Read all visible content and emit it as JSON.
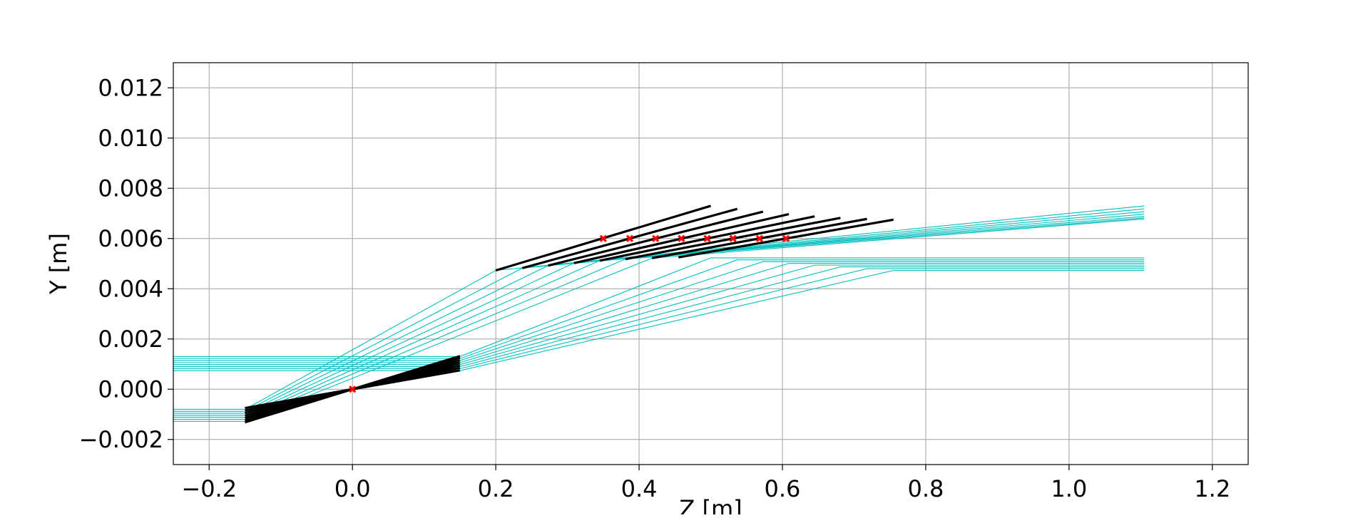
{
  "chart_data": {
    "type": "line",
    "title": "",
    "xlabel": "Z [m]",
    "ylabel": "Y [m]",
    "xlim": [
      -0.25,
      1.25
    ],
    "ylim": [
      -0.003,
      0.013
    ],
    "grid": true,
    "x_ticks": [
      -0.2,
      0.0,
      0.2,
      0.4,
      0.6,
      0.8,
      1.0,
      1.2
    ],
    "x_tick_labels": [
      "−0.2",
      "0.0",
      "0.2",
      "0.4",
      "0.6",
      "0.8",
      "1.0",
      "1.2"
    ],
    "y_ticks": [
      -0.002,
      0.0,
      0.002,
      0.004,
      0.006,
      0.008,
      0.01,
      0.012
    ],
    "y_tick_labels": [
      "−0.002",
      "0.000",
      "0.002",
      "0.004",
      "0.006",
      "0.008",
      "0.010",
      "0.012"
    ],
    "colors": {
      "ray": "#00bfbf",
      "optic": "#000000",
      "point": "#ff0000",
      "grid": "#b0b0b0"
    },
    "source_mirror": {
      "pivot": [
        0.0,
        0.0
      ],
      "segments": [
        [
          [
            -0.15,
            -0.00075
          ],
          [
            0.15,
            0.00075
          ]
        ],
        [
          [
            -0.15,
            -0.00085
          ],
          [
            0.15,
            0.00085
          ]
        ],
        [
          [
            -0.15,
            -0.00095
          ],
          [
            0.15,
            0.00095
          ]
        ],
        [
          [
            -0.15,
            -0.00105
          ],
          [
            0.15,
            0.00105
          ]
        ],
        [
          [
            -0.15,
            -0.00115
          ],
          [
            0.15,
            0.00115
          ]
        ],
        [
          [
            -0.15,
            -0.00125
          ],
          [
            0.15,
            0.00125
          ]
        ],
        [
          [
            -0.15,
            -0.00132
          ],
          [
            0.15,
            0.00132
          ]
        ]
      ]
    },
    "segmented_mirrors": [
      {
        "start": [
          0.2,
          0.00473
        ],
        "end": [
          0.5,
          0.0073
        ],
        "center": [
          0.35,
          0.006
        ]
      },
      {
        "start": [
          0.237,
          0.00482
        ],
        "end": [
          0.537,
          0.00718
        ],
        "center": [
          0.387,
          0.006
        ]
      },
      {
        "start": [
          0.273,
          0.00492
        ],
        "end": [
          0.573,
          0.00707
        ],
        "center": [
          0.423,
          0.006
        ]
      },
      {
        "start": [
          0.309,
          0.00502
        ],
        "end": [
          0.609,
          0.00697
        ],
        "center": [
          0.459,
          0.006
        ]
      },
      {
        "start": [
          0.345,
          0.00512
        ],
        "end": [
          0.645,
          0.00688
        ],
        "center": [
          0.495,
          0.006
        ]
      },
      {
        "start": [
          0.381,
          0.00518
        ],
        "end": [
          0.681,
          0.00682
        ],
        "center": [
          0.531,
          0.006
        ]
      },
      {
        "start": [
          0.418,
          0.00522
        ],
        "end": [
          0.718,
          0.00678
        ],
        "center": [
          0.568,
          0.006
        ]
      },
      {
        "start": [
          0.455,
          0.00525
        ],
        "end": [
          0.755,
          0.00675
        ],
        "center": [
          0.605,
          0.006
        ]
      }
    ],
    "series": [
      {
        "x": [
          -0.25,
          -0.15,
          0.2,
          1.105
        ],
        "y": [
          -0.0008,
          -0.0008,
          0.00473,
          0.0073
        ]
      },
      {
        "x": [
          -0.25,
          -0.15,
          0.237,
          1.105
        ],
        "y": [
          -0.00088,
          -0.00088,
          0.00482,
          0.00718
        ]
      },
      {
        "x": [
          -0.25,
          -0.15,
          0.273,
          1.105
        ],
        "y": [
          -0.00096,
          -0.00096,
          0.00492,
          0.00707
        ]
      },
      {
        "x": [
          -0.25,
          -0.15,
          0.309,
          1.105
        ],
        "y": [
          -0.00104,
          -0.00104,
          0.00502,
          0.00697
        ]
      },
      {
        "x": [
          -0.25,
          -0.15,
          0.345,
          1.105
        ],
        "y": [
          -0.00112,
          -0.00112,
          0.00512,
          0.00688
        ]
      },
      {
        "x": [
          -0.25,
          -0.15,
          0.381,
          1.105
        ],
        "y": [
          -0.0012,
          -0.0012,
          0.00518,
          0.00682
        ]
      },
      {
        "x": [
          -0.25,
          -0.15,
          0.418,
          1.105
        ],
        "y": [
          -0.00128,
          -0.00128,
          0.00522,
          0.00678
        ]
      },
      {
        "x": [
          -0.25,
          0.15,
          0.5,
          1.105
        ],
        "y": [
          0.0013,
          0.0013,
          0.00523,
          0.00523
        ]
      },
      {
        "x": [
          -0.25,
          0.15,
          0.537,
          1.105
        ],
        "y": [
          0.00122,
          0.00122,
          0.00515,
          0.00515
        ]
      },
      {
        "x": [
          -0.25,
          0.15,
          0.573,
          1.105
        ],
        "y": [
          0.00114,
          0.00114,
          0.00508,
          0.00508
        ]
      },
      {
        "x": [
          -0.25,
          0.15,
          0.609,
          1.105
        ],
        "y": [
          0.00106,
          0.00106,
          0.00501,
          0.00501
        ]
      },
      {
        "x": [
          -0.25,
          0.15,
          0.645,
          1.105
        ],
        "y": [
          0.00098,
          0.00098,
          0.00494,
          0.00494
        ]
      },
      {
        "x": [
          -0.25,
          0.15,
          0.681,
          1.105
        ],
        "y": [
          0.0009,
          0.0009,
          0.00487,
          0.00487
        ]
      },
      {
        "x": [
          -0.25,
          0.15,
          0.718,
          1.105
        ],
        "y": [
          0.00082,
          0.00082,
          0.0048,
          0.0048
        ]
      },
      {
        "x": [
          -0.25,
          0.15,
          0.755,
          1.105
        ],
        "y": [
          0.00074,
          0.00074,
          0.00473,
          0.00473
        ]
      }
    ]
  }
}
